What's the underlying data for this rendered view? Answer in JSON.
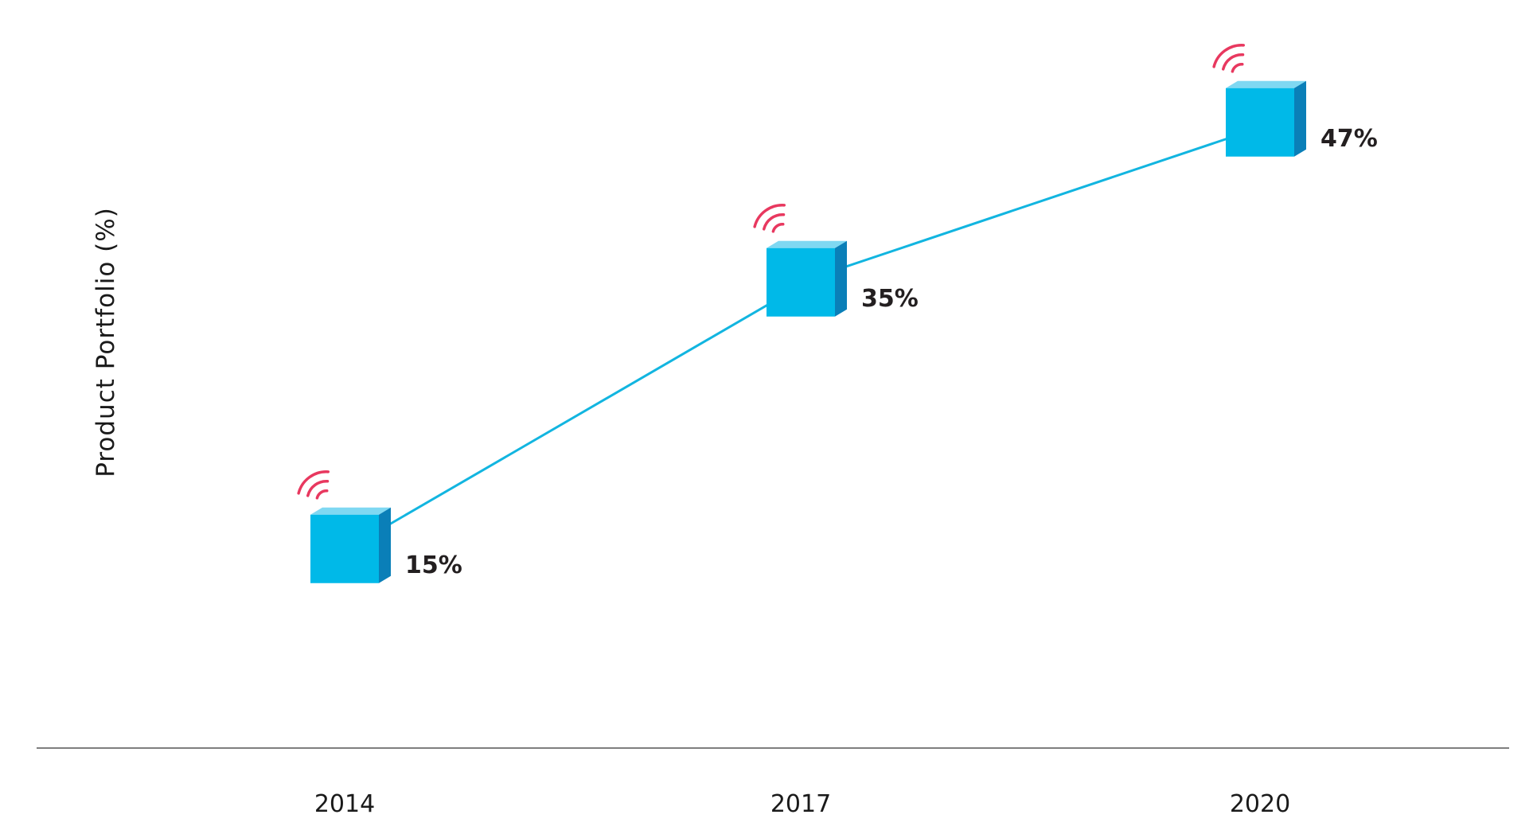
{
  "chart_data": {
    "type": "line",
    "ylabel": "Product  Portfolio (%)",
    "xlabel": "",
    "categories": [
      "2014",
      "2017",
      "2020"
    ],
    "values": [
      15,
      35,
      47
    ],
    "value_labels": [
      "15%",
      "35%",
      "47%"
    ],
    "ylim": [
      0,
      60
    ],
    "grid": false,
    "legend": "none",
    "marker": "cube-with-wireless-signal-icon"
  },
  "colors": {
    "line": "#12b5e0",
    "cube_front": "#00b9e8",
    "cube_top": "#7fd8f2",
    "cube_side": "#0a7fb8",
    "signal": "#e8385f",
    "baseline": "#555555",
    "text": "#231f20"
  }
}
